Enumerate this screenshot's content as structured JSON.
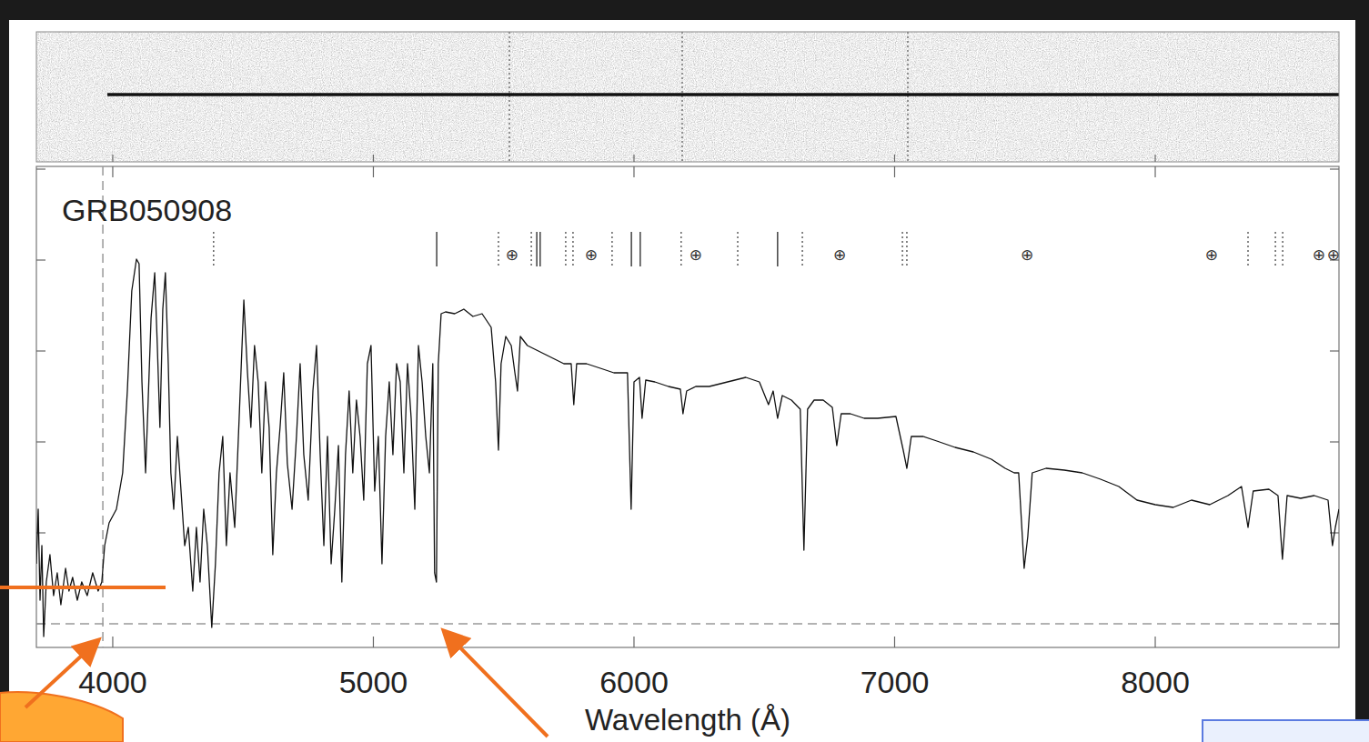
{
  "chart_data": {
    "type": "line",
    "title": "GRB050908",
    "x_label": "Wavelength (Å)",
    "x": [
      3707,
      3714,
      3721,
      3728,
      3735,
      3745,
      3759,
      3773,
      3787,
      3801,
      3819,
      3832,
      3846,
      3864,
      3881,
      3902,
      3923,
      3944,
      3958,
      3969,
      3986,
      4014,
      4038,
      4056,
      4073,
      4091,
      4101,
      4112,
      4126,
      4136,
      4147,
      4161,
      4171,
      4181,
      4192,
      4202,
      4213,
      4223,
      4234,
      4248,
      4262,
      4276,
      4290,
      4307,
      4321,
      4335,
      4349,
      4363,
      4380,
      4394,
      4408,
      4422,
      4436,
      4450,
      4468,
      4485,
      4503,
      4517,
      4530,
      4544,
      4558,
      4572,
      4586,
      4600,
      4614,
      4628,
      4642,
      4656,
      4670,
      4688,
      4705,
      4719,
      4733,
      4750,
      4768,
      4782,
      4796,
      4810,
      4824,
      4838,
      4852,
      4866,
      4879,
      4893,
      4907,
      4921,
      4935,
      4949,
      4963,
      4977,
      4991,
      5005,
      5019,
      5033,
      5047,
      5061,
      5075,
      5089,
      5103,
      5117,
      5131,
      5145,
      5159,
      5173,
      5187,
      5201,
      5215,
      5228,
      5235,
      5242,
      5249,
      5260,
      5277,
      5312,
      5347,
      5382,
      5417,
      5452,
      5469,
      5480,
      5490,
      5508,
      5529,
      5543,
      5553,
      5564,
      5591,
      5626,
      5661,
      5696,
      5731,
      5759,
      5769,
      5780,
      5818,
      5871,
      5923,
      5975,
      5989,
      6000,
      6021,
      6031,
      6045,
      6080,
      6132,
      6178,
      6188,
      6202,
      6237,
      6289,
      6359,
      6429,
      6481,
      6516,
      6534,
      6551,
      6569,
      6604,
      6638,
      6652,
      6666,
      6691,
      6726,
      6761,
      6778,
      6795,
      6830,
      6883,
      6935,
      7005,
      7033,
      7047,
      7064,
      7110,
      7162,
      7232,
      7302,
      7371,
      7424,
      7459,
      7476,
      7487,
      7497,
      7511,
      7528,
      7581,
      7651,
      7720,
      7790,
      7860,
      7930,
      8000,
      8069,
      8139,
      8209,
      8279,
      8331,
      8356,
      8376,
      8436,
      8471,
      8488,
      8506,
      8558,
      8610,
      8663,
      8680,
      8691,
      8705
    ],
    "values": [
      0.66,
      1.26,
      0.26,
      0.86,
      -0.14,
      0.46,
      0.76,
      0.31,
      0.56,
      0.21,
      0.61,
      0.36,
      0.51,
      0.26,
      0.46,
      0.31,
      0.56,
      0.36,
      0.46,
      0.86,
      1.11,
      1.26,
      1.66,
      2.56,
      3.66,
      4.01,
      3.96,
      2.66,
      1.66,
      2.46,
      3.36,
      3.86,
      3.06,
      2.16,
      3.46,
      3.86,
      2.86,
      1.66,
      1.26,
      2.06,
      1.46,
      0.86,
      1.06,
      0.36,
      1.06,
      0.46,
      1.26,
      0.86,
      -0.04,
      0.66,
      1.66,
      2.06,
      0.86,
      1.66,
      1.06,
      2.26,
      3.56,
      2.76,
      2.16,
      3.06,
      2.66,
      1.66,
      2.66,
      2.16,
      0.76,
      1.66,
      2.16,
      2.76,
      1.76,
      1.26,
      2.06,
      2.86,
      1.86,
      1.36,
      2.56,
      3.06,
      1.86,
      0.86,
      2.06,
      0.66,
      1.26,
      1.96,
      0.46,
      1.86,
      2.56,
      1.66,
      2.46,
      2.06,
      1.36,
      2.86,
      3.06,
      1.46,
      2.06,
      0.66,
      2.06,
      2.66,
      1.86,
      2.86,
      2.66,
      1.66,
      2.86,
      2.26,
      1.26,
      3.06,
      2.66,
      2.06,
      1.66,
      2.86,
      0.56,
      0.46,
      2.86,
      3.41,
      3.43,
      3.41,
      3.46,
      3.38,
      3.41,
      3.26,
      2.66,
      1.91,
      2.86,
      3.16,
      3.06,
      2.76,
      2.56,
      3.16,
      3.06,
      3.01,
      2.96,
      2.91,
      2.86,
      2.86,
      2.41,
      2.86,
      2.86,
      2.81,
      2.76,
      2.76,
      1.26,
      2.66,
      2.71,
      2.26,
      2.68,
      2.66,
      2.61,
      2.58,
      2.31,
      2.56,
      2.61,
      2.61,
      2.66,
      2.71,
      2.66,
      2.41,
      2.56,
      2.26,
      2.51,
      2.46,
      2.36,
      0.81,
      2.36,
      2.46,
      2.46,
      2.38,
      1.96,
      2.31,
      2.31,
      2.26,
      2.26,
      2.28,
      1.91,
      1.71,
      2.06,
      2.06,
      2.01,
      1.94,
      1.89,
      1.81,
      1.71,
      1.66,
      1.66,
      1.11,
      0.61,
      0.96,
      1.66,
      1.71,
      1.69,
      1.66,
      1.59,
      1.51,
      1.36,
      1.31,
      1.28,
      1.36,
      1.31,
      1.41,
      1.51,
      1.06,
      1.46,
      1.48,
      1.41,
      0.71,
      1.41,
      1.38,
      1.41,
      1.36,
      0.86,
      1.06,
      1.26
    ],
    "color": "#111111",
    "xlim": [
      3707,
      8705
    ],
    "xticks": [
      4000,
      5000,
      6000,
      7000,
      8000
    ],
    "ylim": [
      -0.26,
      5.03
    ],
    "yticks": [
      0,
      1,
      2,
      3,
      4,
      5
    ],
    "tick_labels": "x",
    "grid": false,
    "reference_x": 3962,
    "line_markers": {
      "solid": [
        5243,
        5627,
        5640,
        5990,
        6024,
        6551
      ],
      "dotted": [
        4387,
        5480,
        5606,
        5738,
        5766,
        5916,
        6181,
        6398,
        6646,
        7030,
        7047,
        8356,
        8461,
        8489
      ]
    },
    "telluric_symbol": "⊕",
    "telluric": [
      5532,
      5836,
      6237,
      6789,
      7508,
      8216,
      8628,
      8684
    ]
  }
}
